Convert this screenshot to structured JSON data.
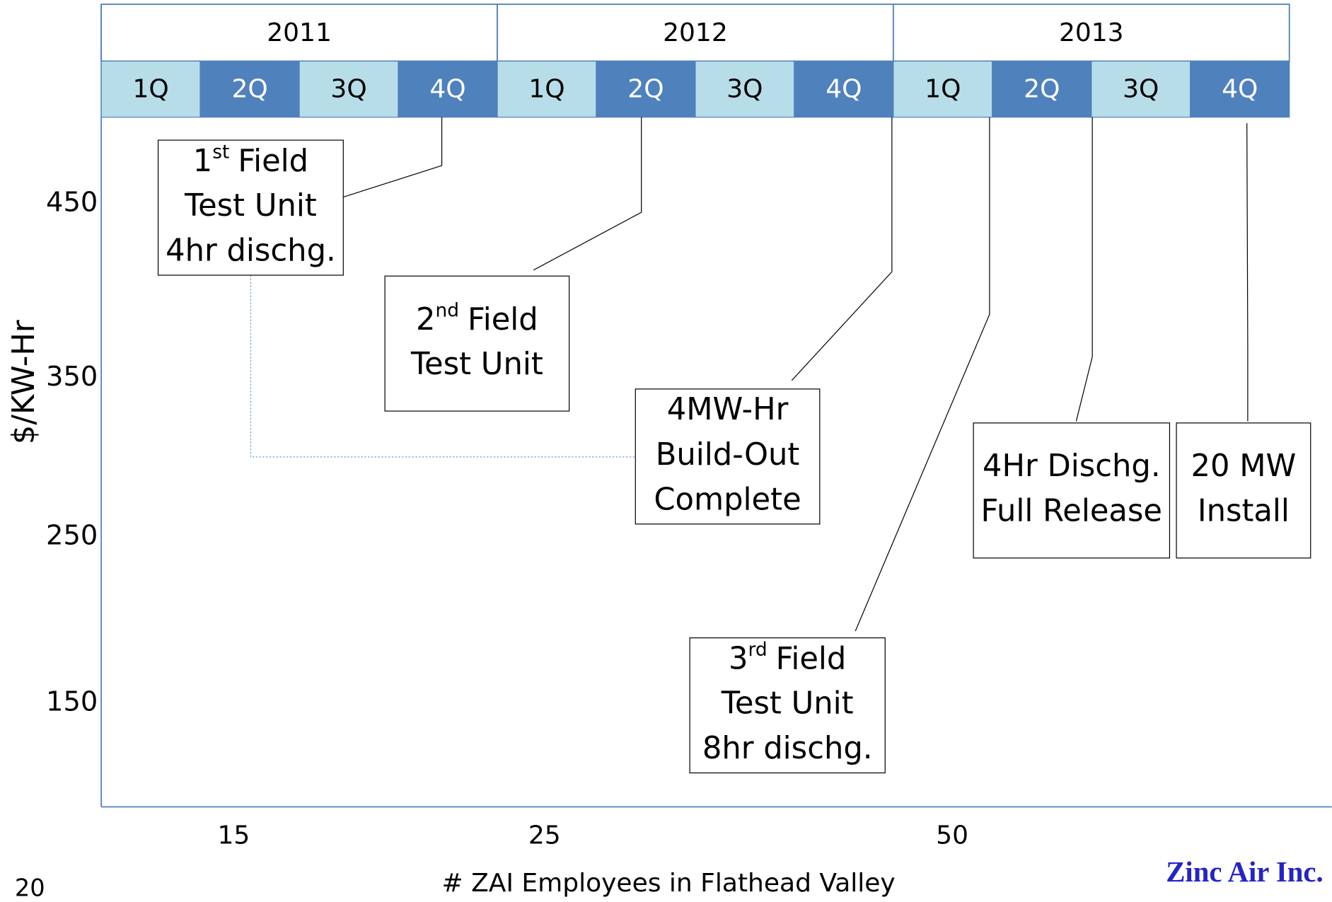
{
  "header": {
    "years": [
      "2011",
      "2012",
      "2013"
    ],
    "quarters": [
      "1Q",
      "2Q",
      "3Q",
      "4Q"
    ]
  },
  "y_axis": {
    "label": "$/KW-Hr",
    "ticks": [
      "450",
      "350",
      "250",
      "150"
    ]
  },
  "x_axis": {
    "label": "# ZAI Employees in Flathead Valley",
    "ticks": [
      "15",
      "25",
      "50"
    ],
    "start": "20"
  },
  "milestones": [
    {
      "ordinal": "1",
      "suffix": "st",
      "lines": [
        "Field",
        "Test Unit",
        "4hr dischg."
      ]
    },
    {
      "ordinal": "2",
      "suffix": "nd",
      "lines": [
        "Field",
        "Test Unit"
      ]
    },
    {
      "lines": [
        "4MW-Hr",
        "Build-Out",
        "Complete"
      ]
    },
    {
      "ordinal": "3",
      "suffix": "rd",
      "lines": [
        "Field",
        "Test Unit",
        "8hr dischg."
      ]
    },
    {
      "lines": [
        "4Hr Dischg.",
        "Full Release"
      ]
    },
    {
      "lines": [
        "20 MW",
        "Install"
      ]
    }
  ],
  "footer": {
    "company": "Zinc Air Inc."
  }
}
